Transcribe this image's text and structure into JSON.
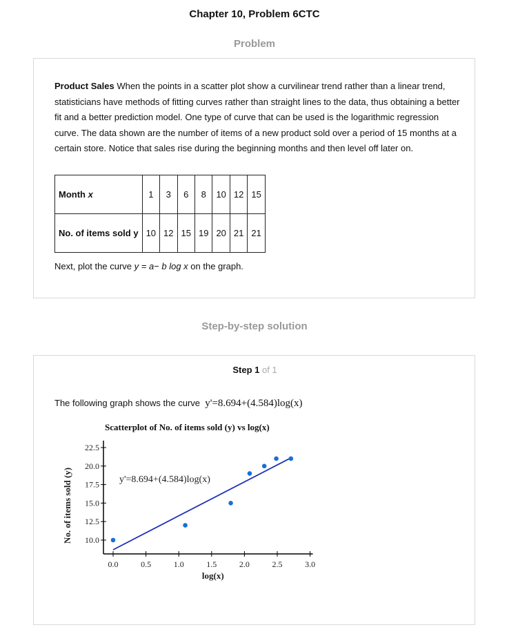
{
  "page": {
    "title": "Chapter 10, Problem 6CTC",
    "problem_heading": "Problem",
    "solution_heading": "Step-by-step solution"
  },
  "problem": {
    "lead": "Product Sales",
    "body": " When the points in a scatter plot show a curvilinear trend rather than a linear trend, statisticians have methods of fitting curves rather than straight lines to the data, thus obtaining a better fit and a better prediction model. One type of curve that can be used is the logarithmic regression curve. The data shown are the number of items of a new product sold over a period of 15 months at a certain store. Notice that sales rise during the beginning months and then level off later on.",
    "table": {
      "row1_label": "Month",
      "row1_var": "x",
      "row1_values": [
        "1",
        "3",
        "6",
        "8",
        "10",
        "12",
        "15"
      ],
      "row2_label": "No. of items sold y",
      "row2_values": [
        "10",
        "12",
        "15",
        "19",
        "20",
        "21",
        "21"
      ]
    },
    "instruction_pre": "Next, plot the curve ",
    "instruction_eq": "y = a− b log x",
    "instruction_post": " on the graph."
  },
  "solution": {
    "step_word": "Step 1",
    "step_of": " of 1",
    "intro": "The following graph shows the curve",
    "equation": "y'=8.694+(4.584)log(x)"
  },
  "chart_data": {
    "type": "scatter",
    "title": "Scatterplot of No. of items sold (y) vs log(x)",
    "xlabel": "log(x)",
    "ylabel": "No. of items sold (y)",
    "xlim": [
      0,
      3.0
    ],
    "ylim": [
      10,
      22.5
    ],
    "x_ticks": [
      "0.0",
      "0.5",
      "1.0",
      "1.5",
      "2.0",
      "2.5",
      "3.0"
    ],
    "y_ticks": [
      "10.0",
      "12.5",
      "15.0",
      "17.5",
      "20.0",
      "22.5"
    ],
    "series": [
      {
        "x": [
          0,
          1.0986,
          1.7918,
          2.0794,
          2.3026,
          2.4849,
          2.7081
        ],
        "y": [
          10,
          12,
          15,
          19,
          20,
          21,
          21
        ],
        "color": "#1a6fd4"
      }
    ],
    "fit_line": {
      "intercept": 8.694,
      "slope": 4.584,
      "x_range": [
        0,
        2.7081
      ],
      "color": "#1c2fb5"
    },
    "annotation": "y'=8.694+(4.584)log(x)"
  }
}
